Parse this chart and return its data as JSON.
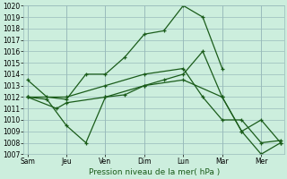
{
  "title": "",
  "xlabel": "Pression niveau de la mer( hPa )",
  "ylabel": "",
  "bg_color": "#cceedd",
  "line_color": "#1a5c1a",
  "grid_color": "#99bbbb",
  "ylim": [
    1007,
    1020
  ],
  "xlim": [
    -0.1,
    6.6
  ],
  "x_tick_positions": [
    0,
    1,
    2,
    3,
    4,
    5,
    6
  ],
  "x_tick_labels": [
    "Sam",
    "Jeu",
    "Ven",
    "Dim",
    "Lun",
    "Mar",
    "Mer"
  ],
  "lines": [
    {
      "x": [
        0,
        0.5,
        1.0,
        1.5,
        2.0,
        2.5,
        3.0,
        3.5,
        4.0,
        4.5,
        5.0
      ],
      "y": [
        1013.5,
        1012.0,
        1011.8,
        1014.0,
        1014.0,
        1015.5,
        1017.5,
        1017.8,
        1020.0,
        1019.0,
        1014.5
      ]
    },
    {
      "x": [
        0,
        0.5,
        1.0,
        1.5,
        2.0,
        2.5,
        3.0,
        3.5,
        4.0,
        4.5,
        5.0,
        5.5,
        6.0,
        6.5
      ],
      "y": [
        1012.0,
        1011.8,
        1009.5,
        1008.0,
        1012.0,
        1012.2,
        1013.0,
        1013.5,
        1014.0,
        1016.0,
        1012.0,
        1009.0,
        1007.0,
        1008.0
      ]
    },
    {
      "x": [
        0,
        1.0,
        2.0,
        3.0,
        4.0,
        4.5,
        5.0,
        5.5,
        6.0,
        6.5
      ],
      "y": [
        1012.0,
        1012.0,
        1013.0,
        1014.0,
        1014.5,
        1012.0,
        1010.0,
        1010.0,
        1008.0,
        1008.2
      ]
    },
    {
      "x": [
        0,
        0.75,
        1.0,
        2.0,
        3.0,
        4.0,
        5.0,
        5.5,
        6.0,
        6.5
      ],
      "y": [
        1012.0,
        1011.0,
        1011.5,
        1012.0,
        1013.0,
        1013.5,
        1012.0,
        1009.0,
        1010.0,
        1008.0
      ]
    }
  ]
}
